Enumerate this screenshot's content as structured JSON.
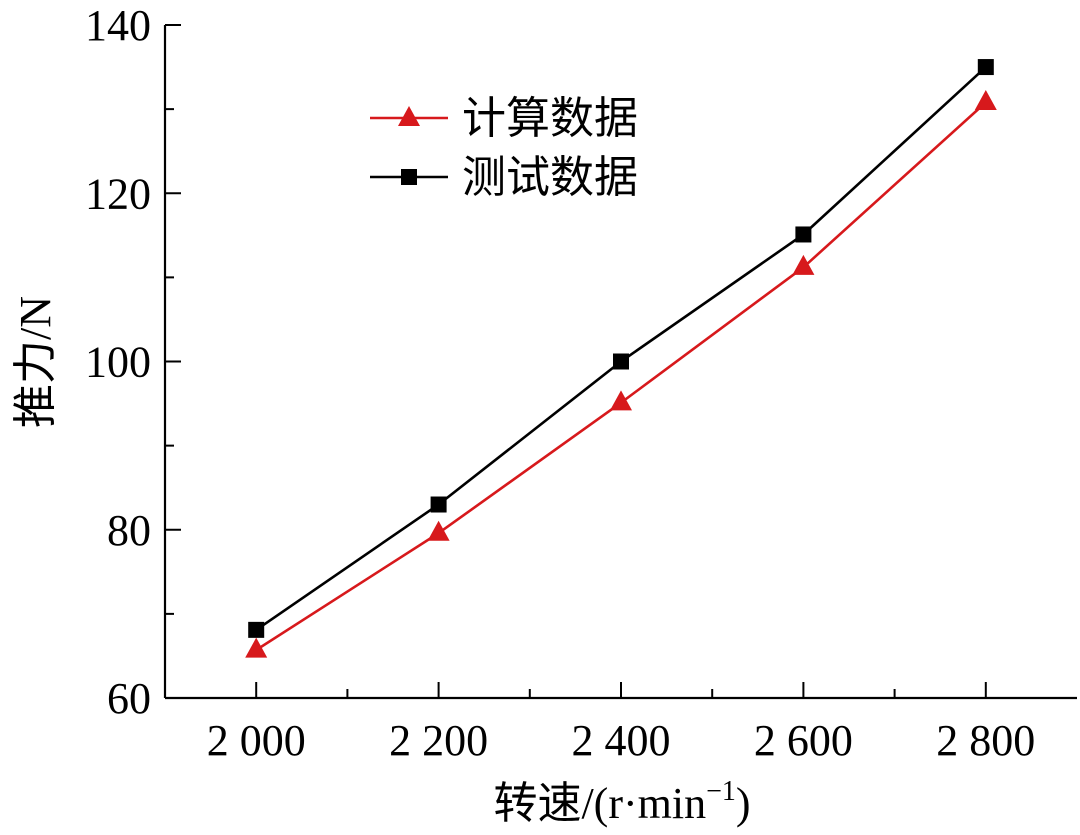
{
  "chart_data": {
    "type": "line",
    "xlabel": "转速/(r·min",
    "xlabel_sup": "−1",
    "xlabel_close": ")",
    "ylabel": "推力/N",
    "x": [
      2000,
      2200,
      2400,
      2600,
      2800
    ],
    "x_tick_labels": [
      "2 000",
      "2 200",
      "2 400",
      "2 600",
      "2 800"
    ],
    "xlim": [
      1900,
      2900
    ],
    "ylim": [
      60,
      140
    ],
    "y_ticks": [
      60,
      80,
      100,
      120,
      140
    ],
    "y_tick_labels": [
      "60",
      "80",
      "100",
      "120",
      "140"
    ],
    "grid": false,
    "legend_position": "top-left",
    "series": [
      {
        "name": "计算数据",
        "values": [
          65.7,
          79.6,
          95.1,
          111.2,
          130.8
        ],
        "color": "#d7191c",
        "marker": "triangle"
      },
      {
        "name": "测试数据",
        "values": [
          68.1,
          83.0,
          100.0,
          115.1,
          135.0
        ],
        "color": "#000000",
        "marker": "square"
      }
    ]
  }
}
